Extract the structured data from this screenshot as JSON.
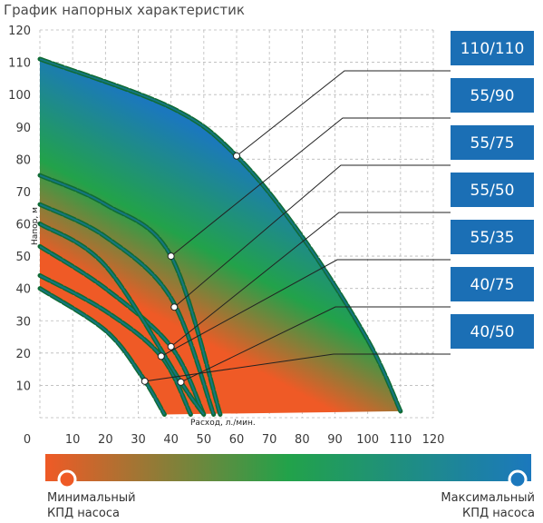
{
  "chart_data": {
    "type": "line",
    "title": "График напорных характеристик",
    "xlabel": "Расход, л./мин.",
    "ylabel": "Напор, м",
    "xlim": [
      0,
      120
    ],
    "ylim": [
      0,
      120
    ],
    "x_ticks": [
      "0",
      "10",
      "20",
      "30",
      "40",
      "50",
      "60",
      "70",
      "80",
      "90",
      "100",
      "110",
      "120"
    ],
    "y_ticks": [
      "10",
      "20",
      "30",
      "40",
      "50",
      "60",
      "70",
      "80",
      "90",
      "100",
      "110",
      "120"
    ],
    "grid": true,
    "legend_position": "right",
    "series": [
      {
        "name": "110/110",
        "color": "#1a7fc0",
        "x": [
          0,
          40,
          60,
          80,
          100,
          110
        ],
        "y": [
          111,
          96,
          81,
          56,
          24,
          2
        ]
      },
      {
        "name": "55/90",
        "color": "#1a7fc0",
        "x": [
          0,
          20,
          40,
          55
        ],
        "y": [
          75,
          66,
          50,
          1
        ]
      },
      {
        "name": "55/75",
        "color": "#1a7fc0",
        "x": [
          0,
          20,
          40,
          53
        ],
        "y": [
          66,
          56,
          37,
          1
        ]
      },
      {
        "name": "55/50",
        "color": "#1a7fc0",
        "x": [
          0,
          20,
          40,
          50
        ],
        "y": [
          53,
          40,
          22,
          1
        ]
      },
      {
        "name": "55/35",
        "color": "#1a7fc0",
        "x": [
          0,
          20,
          37,
          46
        ],
        "y": [
          44,
          33,
          19,
          1
        ]
      },
      {
        "name": "40/75",
        "color": "#1a7fc0",
        "x": [
          0,
          20,
          43,
          50
        ],
        "y": [
          60,
          47,
          11,
          1
        ]
      },
      {
        "name": "40/50",
        "color": "#1a7fc0",
        "x": [
          0,
          20,
          31,
          38
        ],
        "y": [
          40,
          27,
          13,
          1
        ]
      }
    ],
    "efficiency_scale": {
      "min_label": "Минимальный КПД насоса",
      "max_label": "Максимальный КПД насоса",
      "min_color": "#ef5a26",
      "mid_color": "#22a24a",
      "max_color": "#1b78bd"
    }
  }
}
